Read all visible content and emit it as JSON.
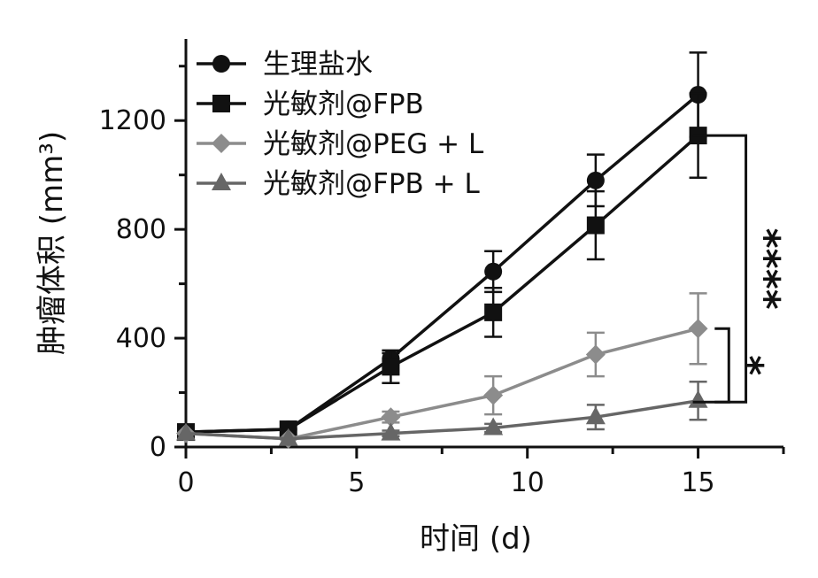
{
  "chart_data": {
    "type": "line",
    "xlabel": "时间 (d)",
    "ylabel": "肿瘤体积 (mm³)",
    "xlim": [
      0,
      17.5
    ],
    "ylim": [
      0,
      1500
    ],
    "xticks": [
      0,
      5,
      10,
      15
    ],
    "yticks": [
      0,
      400,
      800,
      1200
    ],
    "x": [
      0,
      3,
      6,
      9,
      12,
      15
    ],
    "legend_position": "top-left",
    "grid": false,
    "series": [
      {
        "name": "生理盐水",
        "color": "#111111",
        "marker": "circle",
        "values": [
          55,
          65,
          325,
          645,
          980,
          1295
        ],
        "errors": [
          0,
          0,
          20,
          75,
          95,
          155
        ]
      },
      {
        "name": "光敏剂@FPB",
        "color": "#111111",
        "marker": "square",
        "values": [
          55,
          65,
          295,
          495,
          815,
          1145
        ],
        "errors": [
          0,
          0,
          60,
          90,
          125,
          155
        ]
      },
      {
        "name": "光敏剂@PEG + L",
        "color": "#8c8c8c",
        "marker": "diamond",
        "values": [
          50,
          30,
          110,
          190,
          340,
          435
        ],
        "errors": [
          0,
          0,
          20,
          70,
          80,
          130
        ]
      },
      {
        "name": "光敏剂@FPB + L",
        "color": "#666666",
        "marker": "triangle",
        "values": [
          50,
          30,
          50,
          70,
          110,
          170
        ],
        "errors": [
          0,
          0,
          10,
          15,
          45,
          70
        ]
      }
    ],
    "annotations": [
      {
        "label": "****",
        "y_top": 1145,
        "y_bottom": 165,
        "x_bracket": 16.4
      },
      {
        "label": "*",
        "y_top": 435,
        "y_bottom": 165,
        "x_bracket": 15.9
      }
    ]
  }
}
